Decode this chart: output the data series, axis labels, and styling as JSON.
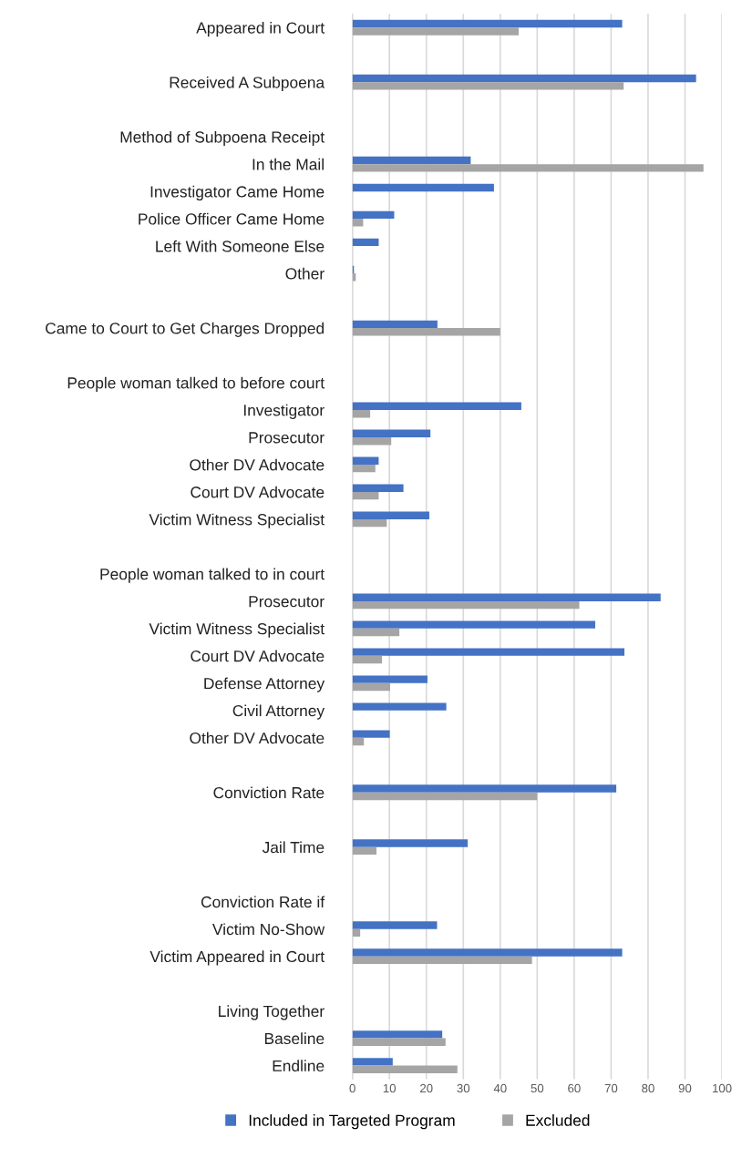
{
  "chart_data": {
    "type": "bar",
    "orientation": "horizontal",
    "categories": [
      "Appeared in Court",
      null,
      "Received A Subpoena",
      null,
      "Method of Subpoena Receipt",
      "In the Mail",
      "Investigator Came Home",
      "Police Officer Came Home",
      "Left With Someone Else",
      "Other",
      null,
      "Came to Court to Get Charges Dropped",
      null,
      "People woman talked to before court",
      "Investigator",
      "Prosecutor",
      "Other DV Advocate",
      "Court DV Advocate",
      "Victim Witness Specialist",
      null,
      "People woman talked to in court",
      "Prosecutor",
      "Victim Witness Specialist",
      "Court DV Advocate",
      "Defense Attorney",
      "Civil Attorney",
      "Other DV Advocate",
      null,
      "Conviction Rate",
      null,
      "Jail Time",
      null,
      "Conviction Rate if",
      "Victim No-Show",
      "Victim Appeared in Court",
      null,
      "Living Together",
      "Baseline",
      "Endline"
    ],
    "series": [
      {
        "name": "Included in Targeted Program",
        "color": "#4472c4",
        "values": [
          73,
          null,
          93,
          null,
          null,
          32,
          38.3,
          11.3,
          7.1,
          0.4,
          null,
          23,
          null,
          null,
          45.7,
          21.1,
          7.1,
          13.8,
          20.8,
          null,
          null,
          83.4,
          65.7,
          73.6,
          20.3,
          25.4,
          10.1,
          null,
          71.4,
          null,
          31.2,
          null,
          null,
          22.9,
          73,
          null,
          null,
          24.3,
          10.9
        ]
      },
      {
        "name": "Excluded",
        "color": "#a5a5a5",
        "values": [
          45,
          null,
          73.4,
          null,
          null,
          95,
          null,
          2.9,
          null,
          0.9,
          null,
          40,
          null,
          null,
          4.8,
          10.5,
          6.2,
          7.1,
          9.3,
          null,
          null,
          61.4,
          12.7,
          8,
          10.2,
          null,
          3.1,
          null,
          50,
          null,
          6.5,
          null,
          null,
          2.1,
          48.6,
          null,
          null,
          25.2,
          28.4
        ]
      }
    ],
    "xlim": [
      0,
      100
    ],
    "xticks": [
      0,
      10,
      20,
      30,
      40,
      50,
      60,
      70,
      80,
      90,
      100
    ],
    "grid": "x",
    "legend": "bottom"
  }
}
